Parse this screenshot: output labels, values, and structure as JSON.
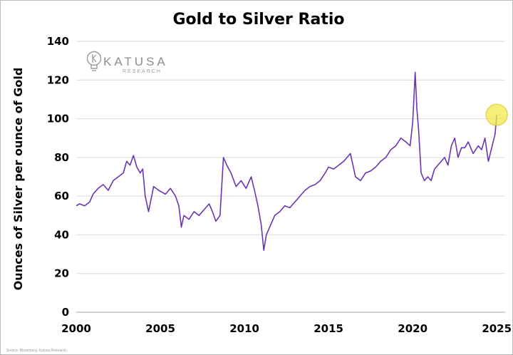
{
  "source": "Source: Bloomberg, Katusa Research",
  "logo": {
    "name": "KATUSA",
    "sub": "RESEARCH"
  },
  "colors": {
    "line": "#6a35b0",
    "highlight": "#f2e84a",
    "grid": "#d9d9d9"
  },
  "chart_data": {
    "type": "line",
    "title": "Gold to Silver Ratio",
    "ylabel": "Ounces of  Silver per ounce of Gold",
    "xlabel": "",
    "xlim": [
      2000,
      2025.5
    ],
    "ylim": [
      0,
      140
    ],
    "xticks": [
      2000,
      2005,
      2010,
      2015,
      2020,
      2025
    ],
    "yticks": [
      0,
      20,
      40,
      60,
      80,
      100,
      120,
      140
    ],
    "grid": "horizontal",
    "highlight": {
      "x": 2025.0,
      "y": 102
    },
    "series": [
      {
        "x": [
          2000.0,
          2000.2,
          2000.5,
          2000.8,
          2001.0,
          2001.3,
          2001.6,
          2001.9,
          2002.2,
          2002.5,
          2002.8,
          2003.0,
          2003.2,
          2003.4,
          2003.6,
          2003.8,
          2003.95,
          2004.1,
          2004.3,
          2004.6,
          2004.9,
          2005.1,
          2005.3,
          2005.6,
          2005.9,
          2006.1,
          2006.25,
          2006.4,
          2006.7,
          2007.0,
          2007.3,
          2007.6,
          2007.9,
          2008.1,
          2008.3,
          2008.55,
          2008.75,
          2008.95,
          2009.2,
          2009.5,
          2009.8,
          2010.1,
          2010.4,
          2010.6,
          2010.8,
          2011.0,
          2011.15,
          2011.3,
          2011.5,
          2011.8,
          2012.1,
          2012.4,
          2012.7,
          2013.0,
          2013.3,
          2013.6,
          2013.9,
          2014.2,
          2014.5,
          2014.8,
          2015.0,
          2015.3,
          2015.6,
          2015.9,
          2016.1,
          2016.3,
          2016.6,
          2016.9,
          2017.2,
          2017.5,
          2017.8,
          2018.1,
          2018.4,
          2018.7,
          2019.0,
          2019.3,
          2019.6,
          2019.85,
          2020.0,
          2020.15,
          2020.25,
          2020.35,
          2020.5,
          2020.7,
          2020.9,
          2021.1,
          2021.3,
          2021.6,
          2021.9,
          2022.1,
          2022.3,
          2022.5,
          2022.7,
          2022.9,
          2023.1,
          2023.3,
          2023.6,
          2023.9,
          2024.1,
          2024.3,
          2024.5,
          2024.7,
          2024.9,
          2025.0
        ],
        "y": [
          55,
          56,
          55,
          57,
          61,
          64,
          66,
          63,
          68,
          70,
          72,
          78,
          76,
          81,
          75,
          72,
          74,
          60,
          52,
          65,
          63,
          62,
          61,
          64,
          60,
          55,
          44,
          50,
          48,
          52,
          50,
          53,
          56,
          52,
          47,
          50,
          80,
          76,
          72,
          65,
          68,
          64,
          70,
          63,
          55,
          45,
          32,
          40,
          44,
          50,
          52,
          55,
          54,
          57,
          60,
          63,
          65,
          66,
          68,
          72,
          75,
          74,
          76,
          78,
          80,
          82,
          70,
          68,
          72,
          73,
          75,
          78,
          80,
          84,
          86,
          90,
          88,
          86,
          98,
          124,
          105,
          95,
          72,
          68,
          70,
          68,
          74,
          77,
          80,
          76,
          86,
          90,
          80,
          85,
          85,
          88,
          82,
          86,
          84,
          90,
          78,
          85,
          92,
          102
        ]
      }
    ]
  }
}
